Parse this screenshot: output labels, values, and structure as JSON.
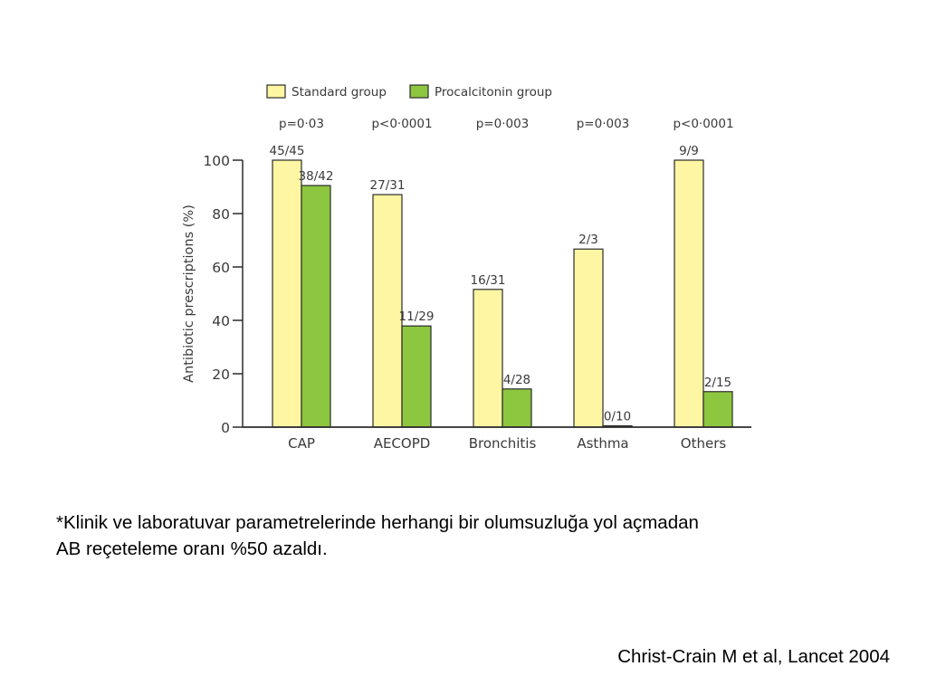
{
  "chart_data": {
    "type": "bar",
    "categories": [
      "CAP",
      "AECOPD",
      "Bronchitis",
      "Asthma",
      "Others"
    ],
    "series": [
      {
        "name": "Standard group",
        "color": "#fef6a3",
        "values": [
          100,
          87.1,
          51.6,
          66.7,
          100
        ],
        "labels": [
          "45/45",
          "27/31",
          "16/31",
          "2/3",
          "9/9"
        ]
      },
      {
        "name": "Procalcitonin group",
        "color": "#8dc63f",
        "values": [
          90.5,
          37.9,
          14.3,
          0,
          13.3
        ],
        "labels": [
          "38/42",
          "11/29",
          "4/28",
          "0/10",
          "2/15"
        ]
      }
    ],
    "p_values": [
      "p=0·03",
      "p<0·0001",
      "p=0·003",
      "p=0·003",
      "p<0·0001"
    ],
    "ylabel": "Antibiotic prescriptions (%)",
    "xlabel": "",
    "ylim": [
      0,
      100
    ],
    "yticks": [
      0,
      20,
      40,
      60,
      80,
      100
    ],
    "grid": false,
    "legend": "top-left"
  },
  "caption": {
    "line1": "*Klinik ve laboratuvar parametrelerinde herhangi bir olumsuzluğa yol açmadan",
    "line2": "AB reçeteleme oranı %50 azaldı."
  },
  "citation": "Christ-Crain M et al, Lancet 2004"
}
